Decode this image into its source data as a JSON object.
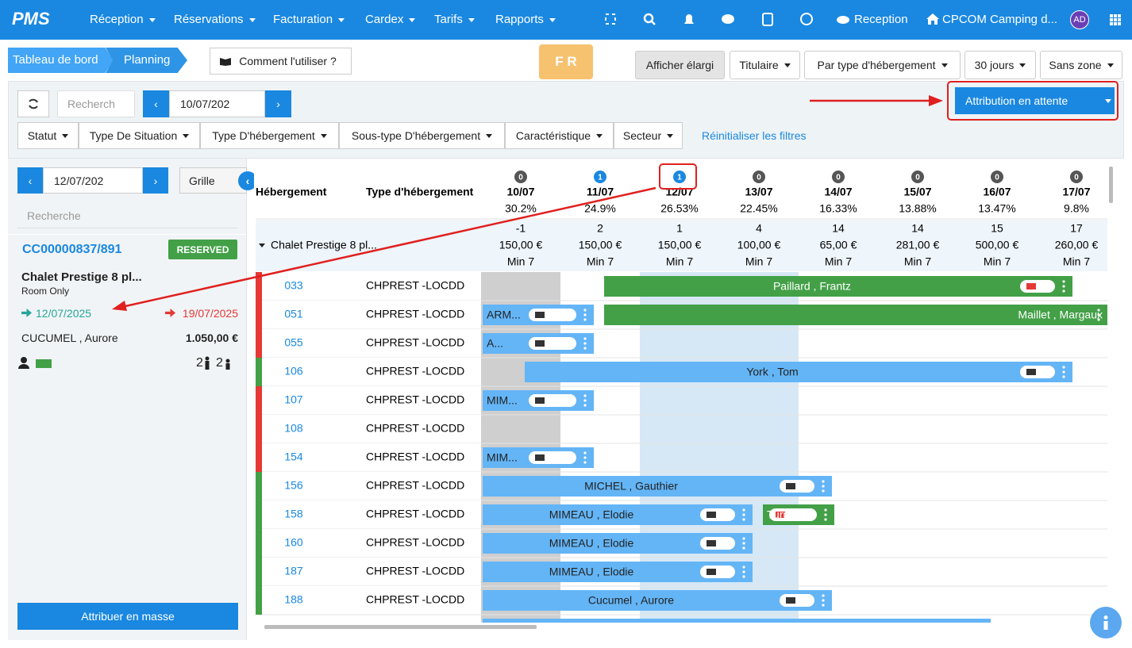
{
  "nav": {
    "brand": "PMS",
    "menus": [
      "Réception",
      "Réservations",
      "Facturation",
      "Cardex",
      "Tarifs",
      "Rapports"
    ],
    "reception": "Reception",
    "property": "CPCOM Camping d...",
    "avatar": "AD"
  },
  "breadcrumb": [
    "Tableau de bord",
    "Planning"
  ],
  "help_button": "Comment l'utiliser ?",
  "language": "F R",
  "view_options": [
    "Afficher élargi",
    "Titulaire",
    "Par type d'hébergement",
    "30 jours",
    "Sans zone"
  ],
  "toolbar": {
    "search_placeholder": "Recherch",
    "date": "10/07/202",
    "pending_button": "Attribution en attente"
  },
  "filters": [
    "Statut",
    "Type De Situation",
    "Type D'hébergement",
    "Sous-type D'hébergement",
    "Caractéristique",
    "Secteur"
  ],
  "reset_filters": "Réinitialiser les filtres",
  "side_panel": {
    "date": "12/07/202",
    "view_button": "Grille",
    "search_placeholder": "Recherche",
    "booking": {
      "id": "CC00000837/891",
      "status": "RESERVED",
      "accommodation": "Chalet Prestige 8 pl...",
      "board": "Room Only",
      "arrival": "12/07/2025",
      "departure": "19/07/2025",
      "guest": "CUCUMEL , Aurore",
      "amount": "1.050,00 €",
      "adults": "2",
      "children": "2"
    },
    "mass_assign_button": "Attribuer en masse"
  },
  "planning": {
    "columns": [
      "Hébergement",
      "Type d'hébergement"
    ],
    "group": "Chalet Prestige 8 pl...",
    "days": [
      {
        "badge": 0,
        "date": "10/07",
        "occupancy": "30.2%",
        "available": -1,
        "price": "150,00 €",
        "min_stay": "Min 7"
      },
      {
        "badge": 1,
        "date": "11/07",
        "occupancy": "24.9%",
        "available": 2,
        "price": "150,00 €",
        "min_stay": "Min 7"
      },
      {
        "badge": 1,
        "date": "12/07",
        "occupancy": "26.53%",
        "available": 1,
        "price": "150,00 €",
        "min_stay": "Min 7"
      },
      {
        "badge": 0,
        "date": "13/07",
        "occupancy": "22.45%",
        "available": 4,
        "price": "100,00 €",
        "min_stay": "Min 7"
      },
      {
        "badge": 0,
        "date": "14/07",
        "occupancy": "16.33%",
        "available": 14,
        "price": "65,00 €",
        "min_stay": "Min 7"
      },
      {
        "badge": 0,
        "date": "15/07",
        "occupancy": "13.88%",
        "available": 14,
        "price": "281,00 €",
        "min_stay": "Min 7"
      },
      {
        "badge": 0,
        "date": "16/07",
        "occupancy": "13.47%",
        "available": 15,
        "price": "500,00 €",
        "min_stay": "Min 7"
      },
      {
        "badge": 0,
        "date": "17/07",
        "occupancy": "9.8%",
        "available": 17,
        "price": "260,00 €",
        "min_stay": "Min 7"
      }
    ],
    "rows": [
      {
        "unit": "033",
        "type": "CHPREST -LOCDD",
        "status_color": "#e53935",
        "bookings": [
          "Paillard , Frantz"
        ]
      },
      {
        "unit": "051",
        "type": "CHPREST -LOCDD",
        "status_color": "#e53935",
        "bookings": [
          "ARM...",
          "Maillet , Margaux"
        ]
      },
      {
        "unit": "055",
        "type": "CHPREST -LOCDD",
        "status_color": "#e53935",
        "bookings": [
          "A..."
        ]
      },
      {
        "unit": "106",
        "type": "CHPREST -LOCDD",
        "status_color": "#43a047",
        "bookings": [
          "York , Tom"
        ]
      },
      {
        "unit": "107",
        "type": "CHPREST -LOCDD",
        "status_color": "#e53935",
        "bookings": [
          "MIM..."
        ]
      },
      {
        "unit": "108",
        "type": "CHPREST -LOCDD",
        "status_color": "#e53935",
        "bookings": []
      },
      {
        "unit": "154",
        "type": "CHPREST -LOCDD",
        "status_color": "#e53935",
        "bookings": [
          "MIM..."
        ]
      },
      {
        "unit": "156",
        "type": "CHPREST -LOCDD",
        "status_color": "#43a047",
        "bookings": [
          "MICHEL , Gauthier"
        ]
      },
      {
        "unit": "158",
        "type": "CHPREST -LOCDD",
        "status_color": "#43a047",
        "bookings": [
          "MIMEAU , Elodie",
          "Turpi..."
        ]
      },
      {
        "unit": "160",
        "type": "CHPREST -LOCDD",
        "status_color": "#43a047",
        "bookings": [
          "MIMEAU , Elodie"
        ]
      },
      {
        "unit": "187",
        "type": "CHPREST -LOCDD",
        "status_color": "#43a047",
        "bookings": [
          "MIMEAU , Elodie"
        ]
      },
      {
        "unit": "188",
        "type": "CHPREST -LOCDD",
        "status_color": "#43a047",
        "bookings": [
          "Cucumel , Aurore"
        ]
      }
    ]
  }
}
